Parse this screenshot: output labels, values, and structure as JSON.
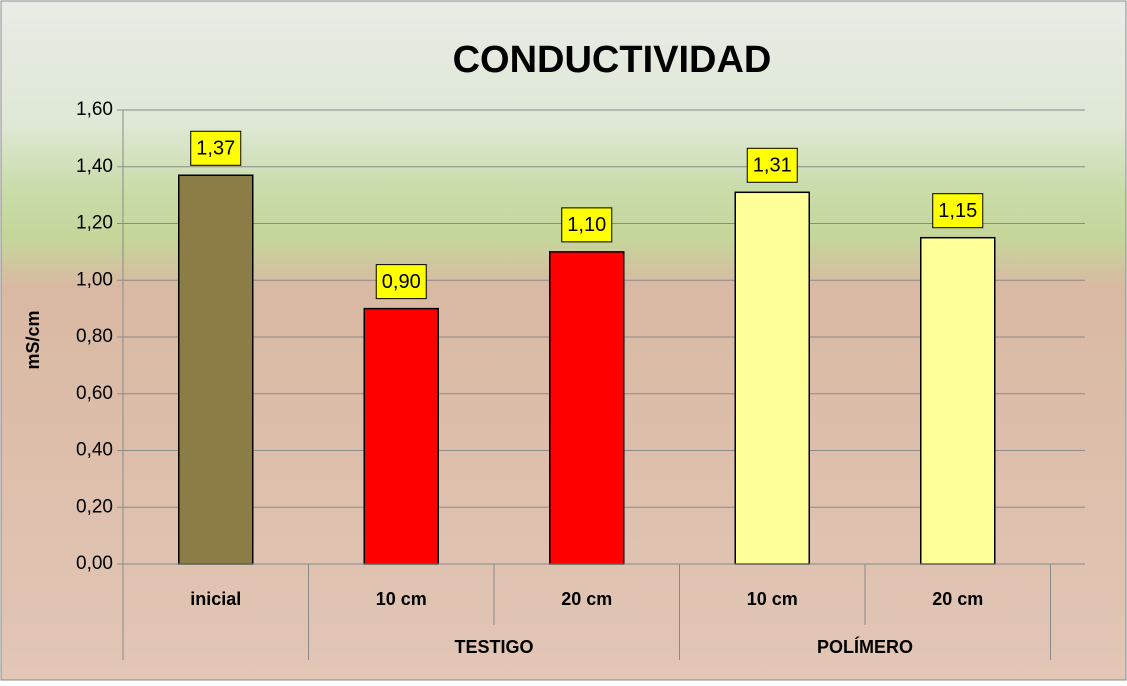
{
  "chart_data": {
    "type": "bar",
    "title": "CONDUCTIVIDAD",
    "y_label": "mS/cm",
    "categories": [
      "inicial",
      "10 cm",
      "20 cm",
      "10 cm",
      "20 cm"
    ],
    "groups": [
      {
        "name": null,
        "size": 1
      },
      {
        "name": "TESTIGO",
        "size": 2
      },
      {
        "name": "POLÍMERO",
        "size": 2
      }
    ],
    "values": [
      1.37,
      0.9,
      1.1,
      1.31,
      1.15
    ],
    "value_labels": [
      "1,37",
      "0,90",
      "1,10",
      "1,31",
      "1,15"
    ],
    "colors": [
      "#8b7d45",
      "#ff0000",
      "#ff0000",
      "#ffff99",
      "#ffff99"
    ],
    "ylim": [
      0,
      1.6
    ],
    "yticks": [
      {
        "value": 0,
        "label": "0,00"
      },
      {
        "value": 0.2,
        "label": "0,20"
      },
      {
        "value": 0.4,
        "label": "0,40"
      },
      {
        "value": 0.6,
        "label": "0,60"
      },
      {
        "value": 0.8,
        "label": "0,80"
      },
      {
        "value": 1.0,
        "label": "1,00"
      },
      {
        "value": 1.2,
        "label": "1,20"
      },
      {
        "value": 1.4,
        "label": "1,40"
      },
      {
        "value": 1.6,
        "label": "1,60"
      }
    ],
    "grid": true
  }
}
